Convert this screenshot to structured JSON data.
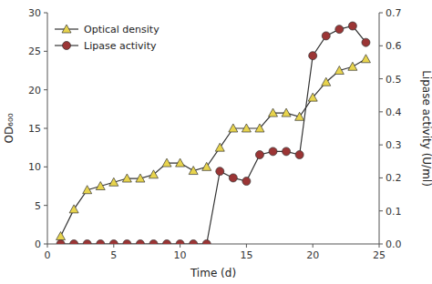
{
  "chart_data": {
    "type": "line",
    "x_label": "Time (d)",
    "y_label": "OD₆₀₀",
    "y2_label": "Lipase activity (U/ml)",
    "x": [
      1,
      2,
      3,
      4,
      5,
      6,
      7,
      8,
      9,
      10,
      11,
      12,
      13,
      14,
      15,
      16,
      17,
      18,
      19,
      20,
      21,
      22,
      23,
      24
    ],
    "series": [
      {
        "name": "Optical density",
        "color": "#e8d44d",
        "marker": "triangle",
        "values": [
          1,
          4.5,
          7,
          7.5,
          8,
          8.5,
          8.5,
          9,
          10.5,
          10.5,
          9.5,
          10,
          12.5,
          15,
          15,
          15,
          17,
          17,
          16.5,
          19,
          21,
          22.5,
          23,
          24
        ]
      },
      {
        "name": "Lipase activity",
        "color": "#9b3535",
        "marker": "circle",
        "axis": "y2",
        "values": [
          0.0,
          0.0,
          0.0,
          0.0,
          0.0,
          0.0,
          0.0,
          0.0,
          0.0,
          0.0,
          0.0,
          0.0,
          0.22,
          0.2,
          0.19,
          0.27,
          0.28,
          0.28,
          0.27,
          0.57,
          0.63,
          0.65,
          0.66,
          0.61
        ]
      }
    ],
    "xlim": [
      0,
      25
    ],
    "xticks": [
      0,
      5,
      10,
      15,
      20,
      25
    ],
    "ylim": [
      0,
      30
    ],
    "yticks": [
      0,
      5,
      10,
      15,
      20,
      25,
      30
    ],
    "y2lim": [
      0,
      0.7
    ],
    "y2ticks": [
      {
        "value": 0,
        "label": "0.0"
      },
      0.1,
      0.2,
      0.3,
      0.4,
      0.5,
      0.6,
      0.7
    ],
    "grid": false,
    "legend": "upper left"
  }
}
